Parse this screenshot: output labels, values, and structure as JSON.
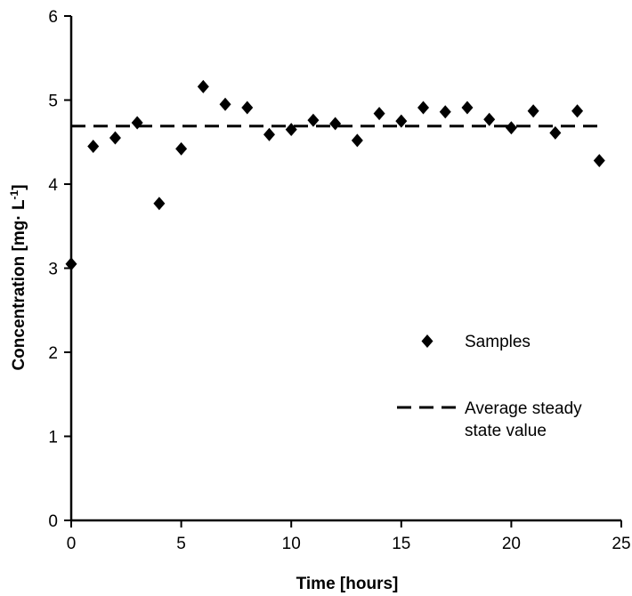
{
  "chart_data": {
    "type": "scatter",
    "title": "",
    "xlabel": "Time [hours]",
    "ylabel_main": "Concentration [mg· L",
    "ylabel_sup": "-1",
    "ylabel_tail": "]",
    "xlim": [
      0,
      25
    ],
    "ylim": [
      0,
      6
    ],
    "x_ticks": [
      "0",
      "5",
      "10",
      "15",
      "20",
      "25"
    ],
    "y_ticks": [
      "0",
      "1",
      "2",
      "3",
      "4",
      "5",
      "6"
    ],
    "grid": false,
    "legend_position": "right",
    "legend": {
      "samples_label": "Samples",
      "average_label_line1": "Average steady",
      "average_label_line2": "state value"
    },
    "series": [
      {
        "name": "Samples",
        "marker": "diamond",
        "color": "#000000",
        "x": [
          0,
          1,
          2,
          3,
          4,
          5,
          6,
          7,
          8,
          9,
          10,
          11,
          12,
          13,
          14,
          15,
          16,
          17,
          18,
          19,
          20,
          21,
          22,
          23,
          24
        ],
        "y": [
          3.05,
          4.45,
          4.55,
          4.73,
          3.77,
          4.42,
          5.16,
          4.95,
          4.91,
          4.59,
          4.65,
          4.76,
          4.72,
          4.52,
          4.84,
          4.75,
          4.91,
          4.86,
          4.91,
          4.77,
          4.67,
          4.87,
          4.61,
          4.87,
          4.28
        ]
      },
      {
        "name": "Average steady state value",
        "style": "dashed",
        "color": "#000000",
        "x": [
          0,
          24
        ],
        "y": [
          4.69,
          4.69
        ]
      }
    ]
  }
}
